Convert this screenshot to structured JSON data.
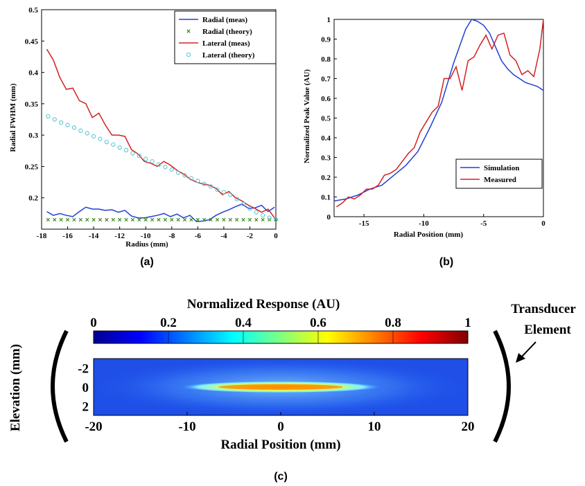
{
  "captions": {
    "a": "(a)",
    "b": "(b)",
    "c": "(c)"
  },
  "chart_data": [
    {
      "type": "line",
      "id": "a",
      "xlabel": "Radius (mm)",
      "ylabel": "Radial FWHM (mm)",
      "xlim": [
        -18,
        0
      ],
      "ylim": [
        0.15,
        0.5
      ],
      "xticks": [
        -18,
        -16,
        -14,
        -12,
        -10,
        -8,
        -6,
        -4,
        -2,
        0
      ],
      "yticks": [
        0.2,
        0.25,
        0.3,
        0.35,
        0.4,
        0.45,
        0.5
      ],
      "ytick_labels": [
        "0.2",
        "0.25",
        "0.3",
        "0.35",
        "0.4",
        "0.45",
        "0.5"
      ],
      "legend_position": "top-right",
      "series": [
        {
          "name": "Radial (meas)",
          "style": "line",
          "color": "#1f3fd6",
          "x": [
            -17.6,
            -17.1,
            -16.6,
            -16.1,
            -15.6,
            -15.1,
            -14.6,
            -14.1,
            -13.6,
            -13.1,
            -12.6,
            -12.1,
            -11.6,
            -11.1,
            -10.6,
            -10.1,
            -9.6,
            -9.1,
            -8.6,
            -8.1,
            -7.6,
            -7.1,
            -6.6,
            -6.1,
            -5.6,
            -5.1,
            -4.6,
            -4.1,
            -3.6,
            -3.1,
            -2.6,
            -2.1,
            -1.6,
            -1.1,
            -0.6,
            -0.1
          ],
          "y": [
            0.178,
            0.172,
            0.175,
            0.172,
            0.17,
            0.178,
            0.185,
            0.182,
            0.182,
            0.18,
            0.181,
            0.177,
            0.18,
            0.171,
            0.168,
            0.168,
            0.17,
            0.172,
            0.175,
            0.17,
            0.174,
            0.168,
            0.172,
            0.162,
            0.163,
            0.165,
            0.172,
            0.177,
            0.181,
            0.186,
            0.19,
            0.183,
            0.184,
            0.188,
            0.178,
            0.185
          ]
        },
        {
          "name": "Radial (theory)",
          "style": "x-markers",
          "color": "#3a8a1a",
          "x": [
            -17.5,
            -17.0,
            -16.5,
            -16.0,
            -15.5,
            -15.0,
            -14.5,
            -14.0,
            -13.5,
            -13.0,
            -12.5,
            -12.0,
            -11.5,
            -11.0,
            -10.5,
            -10.0,
            -9.5,
            -9.0,
            -8.5,
            -8.0,
            -7.5,
            -7.0,
            -6.5,
            -6.0,
            -5.5,
            -5.0,
            -4.5,
            -4.0,
            -3.5,
            -3.0,
            -2.5,
            -2.0,
            -1.5,
            -1.0,
            -0.5,
            0.0
          ],
          "y": [
            0.165,
            0.165,
            0.165,
            0.165,
            0.165,
            0.165,
            0.165,
            0.165,
            0.165,
            0.165,
            0.165,
            0.165,
            0.165,
            0.165,
            0.165,
            0.165,
            0.165,
            0.165,
            0.165,
            0.165,
            0.165,
            0.165,
            0.165,
            0.165,
            0.165,
            0.165,
            0.165,
            0.165,
            0.165,
            0.165,
            0.165,
            0.165,
            0.165,
            0.165,
            0.165,
            0.165
          ]
        },
        {
          "name": "Lateral (meas)",
          "style": "line",
          "color": "#d42020",
          "x": [
            -17.6,
            -17.1,
            -16.6,
            -16.1,
            -15.6,
            -15.1,
            -14.6,
            -14.1,
            -13.6,
            -13.1,
            -12.6,
            -12.1,
            -11.6,
            -11.1,
            -10.6,
            -10.1,
            -9.6,
            -9.1,
            -8.6,
            -8.1,
            -7.6,
            -7.1,
            -6.6,
            -6.1,
            -5.6,
            -5.1,
            -4.6,
            -4.1,
            -3.6,
            -3.1,
            -2.6,
            -2.1,
            -1.6,
            -1.1,
            -0.6,
            -0.1
          ],
          "y": [
            0.437,
            0.42,
            0.392,
            0.373,
            0.375,
            0.355,
            0.35,
            0.328,
            0.335,
            0.316,
            0.3,
            0.3,
            0.298,
            0.277,
            0.27,
            0.258,
            0.255,
            0.25,
            0.258,
            0.252,
            0.244,
            0.238,
            0.23,
            0.225,
            0.222,
            0.22,
            0.215,
            0.205,
            0.21,
            0.2,
            0.195,
            0.188,
            0.183,
            0.177,
            0.182,
            0.168
          ]
        },
        {
          "name": "Lateral (theory)",
          "style": "o-markers",
          "color": "#5bc7d6",
          "x": [
            -17.5,
            -17.0,
            -16.5,
            -16.0,
            -15.5,
            -15.0,
            -14.5,
            -14.0,
            -13.5,
            -13.0,
            -12.5,
            -12.0,
            -11.5,
            -11.0,
            -10.5,
            -10.0,
            -9.5,
            -9.0,
            -8.5,
            -8.0,
            -7.5,
            -7.0,
            -6.5,
            -6.0,
            -5.5,
            -5.0,
            -4.5,
            -4.0,
            -3.5,
            -3.0,
            -2.5,
            -2.0,
            -1.5,
            -1.0,
            -0.5,
            0.0
          ],
          "y": [
            0.33,
            0.325,
            0.32,
            0.316,
            0.312,
            0.307,
            0.303,
            0.298,
            0.294,
            0.289,
            0.285,
            0.28,
            0.276,
            0.271,
            0.267,
            0.262,
            0.258,
            0.253,
            0.249,
            0.245,
            0.24,
            0.236,
            0.231,
            0.227,
            0.222,
            0.218,
            0.213,
            0.209,
            0.205,
            0.198,
            0.19,
            0.183,
            0.177,
            0.172,
            0.168,
            0.165
          ]
        }
      ]
    },
    {
      "type": "line",
      "id": "b",
      "xlabel": "Radial Position (mm)",
      "ylabel": "Normalized Peak Value (AU)",
      "xlim": [
        -17.5,
        0
      ],
      "ylim": [
        0,
        1
      ],
      "xticks": [
        -15,
        -10,
        -5,
        0
      ],
      "yticks": [
        0,
        0.1,
        0.2,
        0.3,
        0.4,
        0.5,
        0.6,
        0.7,
        0.8,
        0.9,
        1
      ],
      "legend_position": "bottom-right",
      "series": [
        {
          "name": "Simulation",
          "color": "#1f3fd6",
          "x": [
            -17.5,
            -16.5,
            -15.5,
            -14.5,
            -13.5,
            -12.5,
            -11.5,
            -10.5,
            -9.5,
            -8.5,
            -7.5,
            -6.5,
            -6.0,
            -5.5,
            -5.0,
            -4.5,
            -4.0,
            -3.5,
            -3.0,
            -2.5,
            -2.0,
            -1.5,
            -1.0,
            -0.5,
            0.0
          ],
          "x_note": "",
          "y": [
            0.08,
            0.09,
            0.11,
            0.14,
            0.16,
            0.21,
            0.26,
            0.33,
            0.45,
            0.58,
            0.78,
            0.95,
            1.0,
            0.99,
            0.97,
            0.93,
            0.86,
            0.79,
            0.75,
            0.72,
            0.7,
            0.68,
            0.67,
            0.66,
            0.64
          ]
        },
        {
          "name": "Measured",
          "color": "#d42020",
          "x": [
            -17.3,
            -16.8,
            -16.3,
            -15.8,
            -15.3,
            -14.8,
            -14.3,
            -13.8,
            -13.3,
            -12.8,
            -12.3,
            -11.8,
            -11.3,
            -10.8,
            -10.3,
            -9.8,
            -9.3,
            -8.8,
            -8.3,
            -7.8,
            -7.3,
            -6.8,
            -6.3,
            -5.8,
            -5.3,
            -4.8,
            -4.3,
            -3.8,
            -3.3,
            -2.8,
            -2.3,
            -1.8,
            -1.3,
            -0.8,
            -0.3,
            0.0
          ],
          "y": [
            0.05,
            0.07,
            0.1,
            0.09,
            0.11,
            0.14,
            0.14,
            0.16,
            0.21,
            0.22,
            0.24,
            0.28,
            0.32,
            0.35,
            0.43,
            0.48,
            0.53,
            0.56,
            0.7,
            0.7,
            0.76,
            0.64,
            0.79,
            0.81,
            0.87,
            0.92,
            0.85,
            0.92,
            0.93,
            0.82,
            0.79,
            0.72,
            0.74,
            0.71,
            0.85,
            1.0
          ]
        }
      ]
    },
    {
      "type": "heatmap",
      "id": "c",
      "colorbar_title": "Normalized Response (AU)",
      "colorbar_ticks": [
        "0",
        "0.2",
        "0.4",
        "0.6",
        "0.8",
        "1"
      ],
      "xlabel": "Radial Position (mm)",
      "ylabel": "Elevation (mm)",
      "xlim": [
        -20,
        20
      ],
      "ylim": [
        -3,
        3
      ],
      "xticks": [
        "-20",
        "-10",
        "0",
        "10",
        "20"
      ],
      "yticks": [
        "-2",
        "0",
        "2"
      ],
      "description": "",
      "annotation": [
        "Transducer",
        "Element"
      ]
    }
  ]
}
